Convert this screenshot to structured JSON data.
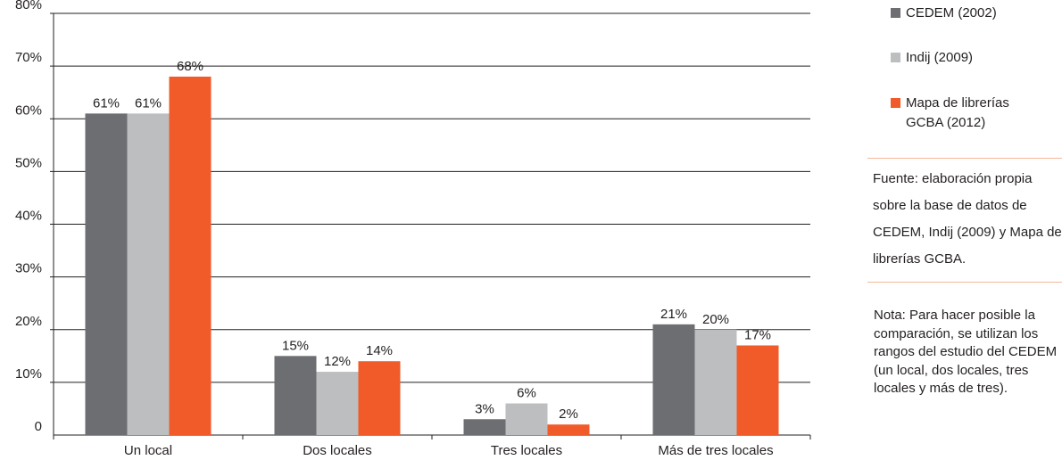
{
  "chart_data": {
    "type": "bar",
    "categories": [
      "Un local",
      "Dos locales",
      "Tres locales",
      "Más de tres locales"
    ],
    "series": [
      {
        "name": "CEDEM (2002)",
        "values": [
          61,
          15,
          3,
          21
        ],
        "labels": [
          "61%",
          "15%",
          "3%",
          "21%"
        ],
        "color": "#6d6e71"
      },
      {
        "name": "Indij (2009)",
        "values": [
          61,
          12,
          6,
          20
        ],
        "labels": [
          "61%",
          "12%",
          "6%",
          "20%"
        ],
        "color": "#bcbec0"
      },
      {
        "name": "Mapa de librerías GCBA (2012)",
        "values": [
          68,
          14,
          2,
          17
        ],
        "labels": [
          "68%",
          "14%",
          "2%",
          "17%"
        ],
        "color": "#f15a29"
      }
    ],
    "ylim": [
      0,
      80
    ],
    "yticks": [
      0,
      10,
      20,
      30,
      40,
      50,
      60,
      70,
      80
    ],
    "ytick_labels": [
      "0",
      "10%",
      "20%",
      "30%",
      "40%",
      "50%",
      "60%",
      "70%",
      "80%"
    ],
    "grid": true,
    "legend_position": "right",
    "title": "",
    "xlabel": "",
    "ylabel": ""
  },
  "legend": {
    "items": [
      {
        "label": "CEDEM (2002)",
        "color": "#6d6e71"
      },
      {
        "label": "Indij (2009)",
        "color": "#bcbec0"
      },
      {
        "label": "Mapa de librerías GCBA (2012)",
        "color": "#f15a29"
      }
    ]
  },
  "source_text": "Fuente: elaboración propia sobre la base de datos de CEDEM, Indij (2009) y Mapa de librerías GCBA.",
  "note_text": "Nota: Para hacer posible la comparación, se utilizan los rangos del estudio del CEDEM (un local, dos locales, tres locales y más de tres)."
}
